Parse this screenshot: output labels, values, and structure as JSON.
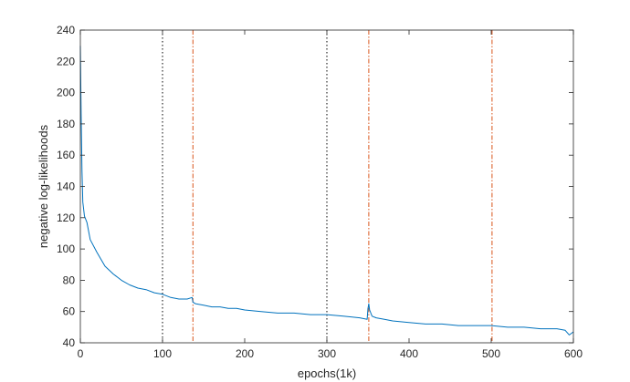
{
  "chart_data": {
    "type": "line",
    "title": "",
    "xlabel": "epochs(1k)",
    "ylabel": "negative log-likelihoods",
    "xlim": [
      0,
      600
    ],
    "ylim": [
      40,
      240
    ],
    "xticks": [
      0,
      100,
      200,
      300,
      400,
      500,
      600
    ],
    "yticks": [
      40,
      60,
      80,
      100,
      120,
      140,
      160,
      180,
      200,
      220,
      240
    ],
    "grid": false,
    "legend": "none",
    "line_color": "#0072BD",
    "vertical_lines": [
      {
        "x": 100,
        "style": "dotted",
        "color": "#000000"
      },
      {
        "x": 137,
        "style": "dash-dot",
        "color": "#D95319"
      },
      {
        "x": 300,
        "style": "dotted",
        "color": "#000000"
      },
      {
        "x": 351,
        "style": "dash-dot",
        "color": "#D95319"
      },
      {
        "x": 501,
        "style": "dash-dot",
        "color": "#D95319"
      }
    ],
    "series": [
      {
        "x": [
          0,
          1,
          2,
          3,
          5,
          8,
          12,
          20,
          30,
          40,
          50,
          60,
          70,
          80,
          90,
          100,
          110,
          120,
          130,
          136,
          137,
          140,
          150,
          160,
          170,
          180,
          190,
          200,
          220,
          240,
          260,
          280,
          300,
          320,
          340,
          349,
          350,
          351,
          352,
          355,
          360,
          370,
          380,
          400,
          420,
          440,
          460,
          480,
          500,
          520,
          540,
          560,
          580,
          590,
          595,
          600
        ],
        "y": [
          230,
          185,
          150,
          130,
          121,
          117,
          106,
          98,
          89,
          84,
          80,
          77,
          75,
          74,
          72,
          71,
          69,
          68,
          68,
          69,
          66,
          65,
          64,
          63,
          63,
          62,
          62,
          61,
          60,
          59,
          59,
          58,
          58,
          57,
          56,
          55,
          62,
          65,
          61,
          57,
          56,
          55,
          54,
          53,
          52,
          52,
          51,
          51,
          51,
          50,
          50,
          49,
          49,
          48,
          45,
          47
        ]
      }
    ]
  }
}
